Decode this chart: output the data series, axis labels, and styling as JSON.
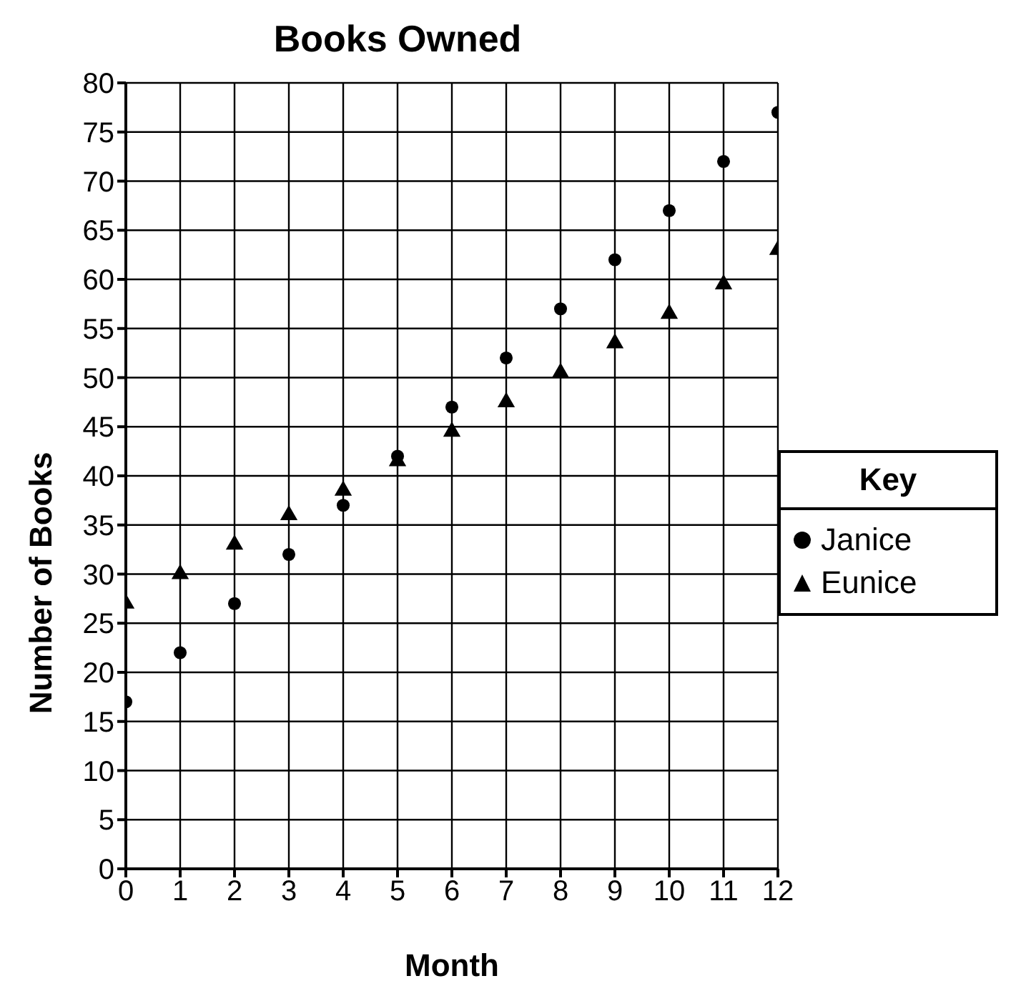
{
  "chart_data": {
    "type": "scatter",
    "title": "Books Owned",
    "xlabel": "Month",
    "ylabel": "Number of Books",
    "legend_title": "Key",
    "legend": "right",
    "grid": true,
    "x": [
      0,
      1,
      2,
      3,
      4,
      5,
      6,
      7,
      8,
      9,
      10,
      11,
      12
    ],
    "xlim": [
      0,
      12
    ],
    "xticks": [
      0,
      1,
      2,
      3,
      4,
      5,
      6,
      7,
      8,
      9,
      10,
      11,
      12
    ],
    "ylim": [
      0,
      80
    ],
    "yticks": [
      0,
      5,
      10,
      15,
      20,
      25,
      30,
      35,
      40,
      45,
      50,
      55,
      60,
      65,
      70,
      75,
      80
    ],
    "series": [
      {
        "name": "Janice",
        "color": "#000000",
        "marker": "circle",
        "values": [
          17,
          22,
          27,
          32,
          37,
          42,
          47,
          52,
          57,
          62,
          67,
          72,
          77
        ]
      },
      {
        "name": "Eunice",
        "color": "#000000",
        "marker": "triangle",
        "values": [
          27,
          30,
          33,
          36,
          38.5,
          41.5,
          44.5,
          47.5,
          50.5,
          53.5,
          56.5,
          59.5,
          63
        ]
      }
    ]
  }
}
